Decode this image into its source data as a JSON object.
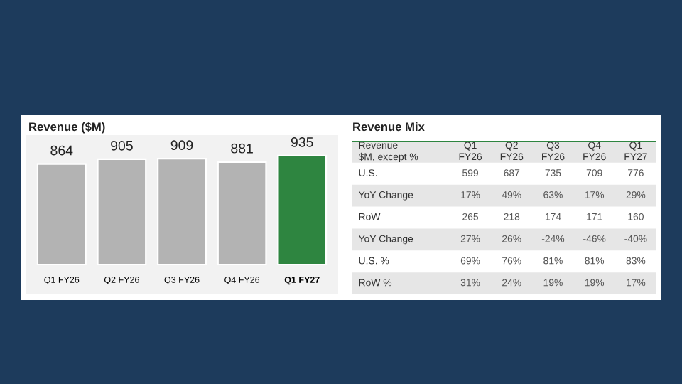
{
  "chart_data": [
    {
      "type": "bar",
      "title": "Revenue ($M)",
      "categories": [
        "Q1 FY26",
        "Q2 FY26",
        "Q3 FY26",
        "Q4 FY26",
        "Q1 FY27"
      ],
      "values": [
        864,
        905,
        909,
        881,
        935
      ],
      "colors": [
        "#b3b3b3",
        "#b3b3b3",
        "#b3b3b3",
        "#b3b3b3",
        "#2e8540"
      ],
      "data_labels": true,
      "grid": false,
      "legend": false
    },
    {
      "type": "other",
      "title": "Revenue Mix",
      "ylabel": "Revenue\n$M, except %",
      "categories": [
        "Q1\nFY26",
        "Q2\nFY26",
        "Q3\nFY26",
        "Q4\nFY26",
        "Q1\nFY27"
      ],
      "y_categories": [
        "U.S.",
        "YoY Change",
        "RoW",
        "YoY Change",
        "U.S. %",
        "RoW %"
      ],
      "cell_labels": [
        [
          "599",
          "687",
          "735",
          "709",
          "776"
        ],
        [
          "17%",
          "49%",
          "63%",
          "17%",
          "29%"
        ],
        [
          "265",
          "218",
          "174",
          "171",
          "160"
        ],
        [
          "27%",
          "26%",
          "-24%",
          "-46%",
          "-40%"
        ],
        [
          "69%",
          "76%",
          "81%",
          "81%",
          "83%"
        ],
        [
          "31%",
          "24%",
          "19%",
          "19%",
          "17%"
        ]
      ]
    }
  ]
}
